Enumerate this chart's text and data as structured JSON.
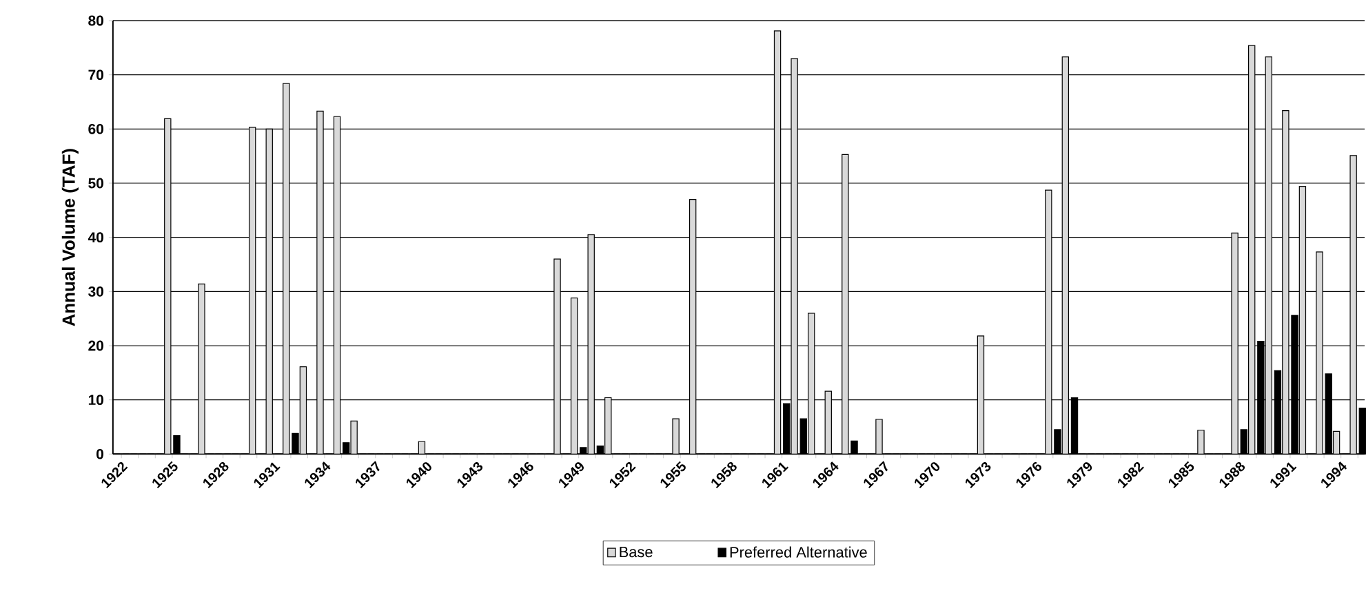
{
  "chart_data": {
    "type": "bar",
    "ylabel": "Annual Volume (TAF)",
    "categories": [
      "1922",
      null,
      null,
      "1925",
      null,
      null,
      "1928",
      null,
      null,
      "1931",
      null,
      null,
      "1934",
      null,
      null,
      "1937",
      null,
      null,
      "1940",
      null,
      null,
      "1943",
      null,
      null,
      "1946",
      null,
      null,
      "1949",
      null,
      null,
      "1952",
      null,
      null,
      "1955",
      null,
      null,
      "1958",
      null,
      null,
      "1961",
      null,
      null,
      "1964",
      null,
      null,
      "1967",
      null,
      null,
      "1970",
      null,
      null,
      "1973",
      null,
      null,
      "1976",
      null,
      null,
      "1979",
      null,
      null,
      "1982",
      null,
      null,
      "1985",
      null,
      null,
      "1988",
      null,
      null,
      "1991",
      null,
      null,
      "1994",
      null
    ],
    "series": [
      {
        "name": "Base",
        "color": "#d9d9d9",
        "values": [
          0,
          0,
          0,
          61.9,
          0,
          31.4,
          0,
          0,
          60.3,
          60,
          68.4,
          16.1,
          63.3,
          62.3,
          6.1,
          0,
          0,
          0,
          2.3,
          0,
          0,
          0,
          0,
          0,
          0,
          0,
          36,
          28.8,
          40.5,
          10.4,
          0,
          0,
          0,
          6.5,
          47,
          0,
          0,
          0,
          0,
          78.1,
          73,
          26,
          11.6,
          55.3,
          0,
          6.4,
          0,
          0,
          0,
          0,
          0,
          21.8,
          0,
          0,
          0,
          48.7,
          73.3,
          0,
          0,
          0,
          0,
          0,
          0,
          0,
          4.4,
          0,
          40.8,
          75.4,
          73.3,
          63.4,
          49.4,
          37.3,
          4.2,
          55.1
        ]
      },
      {
        "name": "Preferred Alternative",
        "color": "#000000",
        "values": [
          0,
          0,
          0,
          3.4,
          0,
          0,
          0,
          0,
          0,
          0,
          3.8,
          0,
          0,
          2.1,
          0,
          0,
          0,
          0,
          0,
          0,
          0,
          0,
          0,
          0,
          0,
          0,
          0,
          1.2,
          1.5,
          0,
          0,
          0,
          0,
          0,
          0,
          0,
          0,
          0,
          0,
          9.3,
          6.5,
          0,
          0,
          2.4,
          0,
          0,
          0,
          0,
          0,
          0,
          0,
          0,
          0,
          0,
          0,
          4.5,
          10.4,
          0,
          0,
          0,
          0,
          0,
          0,
          0,
          0,
          0,
          4.5,
          20.8,
          15.4,
          25.6,
          0,
          14.8,
          0,
          8.5
        ]
      }
    ],
    "ylim": [
      0,
      80
    ],
    "yticks": [
      0,
      10,
      20,
      30,
      40,
      50,
      60,
      70,
      80
    ],
    "grid": "y",
    "legend": "bottom"
  }
}
